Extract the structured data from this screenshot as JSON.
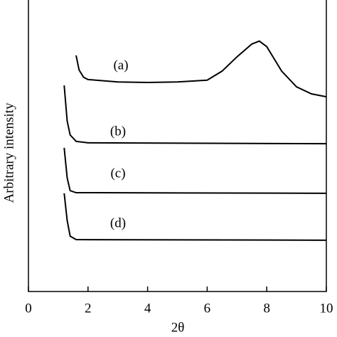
{
  "chart_data": {
    "type": "line",
    "xlabel": "2θ",
    "ylabel": "Arbitrary intensity",
    "xlim": [
      0,
      10
    ],
    "xticks": [
      0,
      2,
      4,
      6,
      8,
      10
    ],
    "ylim": [
      0,
      100
    ],
    "color": "#000000",
    "series": [
      {
        "name": "(a)",
        "x": [
          1.6,
          1.7,
          1.85,
          2.0,
          3.0,
          4.0,
          5.0,
          6.0,
          6.5,
          7.0,
          7.5,
          7.75,
          8.0,
          8.5,
          9.0,
          9.5,
          10.0
        ],
        "values": [
          81,
          76,
          73.5,
          72.7,
          71.9,
          71.7,
          71.9,
          72.5,
          75.6,
          80.5,
          84.9,
          85.9,
          84,
          75.6,
          70.2,
          67.8,
          66.8
        ]
      },
      {
        "name": "(b)",
        "x": [
          1.2,
          1.3,
          1.4,
          1.6,
          2.0,
          10.0
        ],
        "values": [
          70.7,
          58.5,
          53.7,
          51.5,
          51,
          50.7
        ]
      },
      {
        "name": "(c)",
        "x": [
          1.2,
          1.3,
          1.4,
          1.6,
          10.0
        ],
        "values": [
          49.3,
          39,
          34.6,
          33.9,
          33.7
        ]
      },
      {
        "name": "(d)",
        "x": [
          1.2,
          1.3,
          1.4,
          1.6,
          10.0
        ],
        "values": [
          33.7,
          24.4,
          19,
          17.8,
          17.6
        ]
      }
    ]
  }
}
